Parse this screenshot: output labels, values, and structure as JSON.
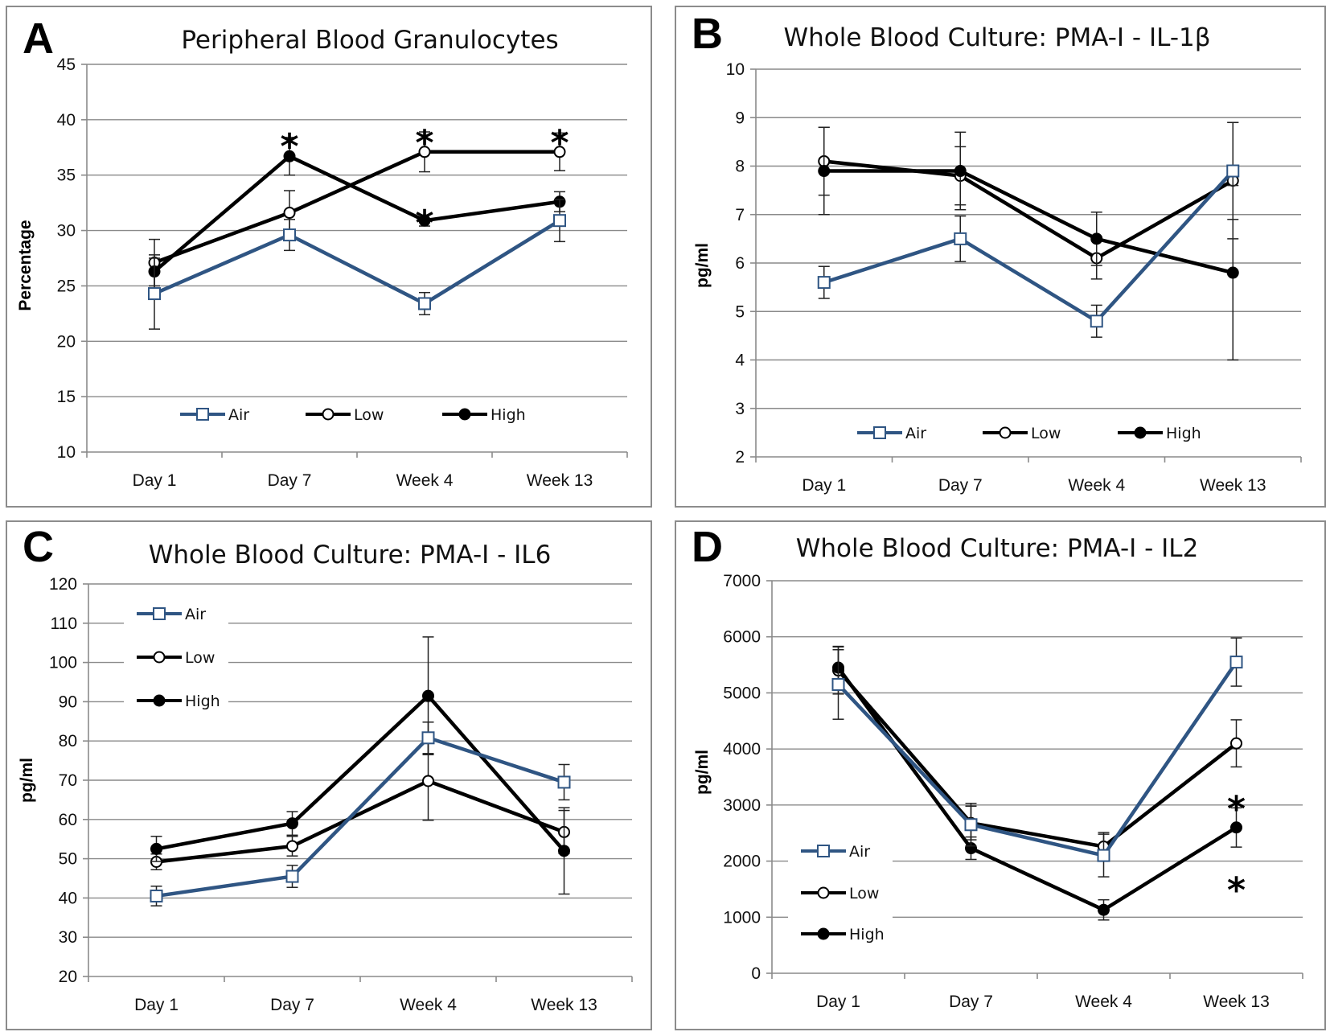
{
  "colors": {
    "air": "#2f5583",
    "low": "#000000",
    "high": "#000000"
  },
  "chart_data": [
    {
      "letter": "A",
      "type": "line",
      "title": "Peripheral Blood Granulocytes",
      "xlabel": "",
      "ylabel": "Percentage",
      "categories": [
        "Day 1",
        "Day 7",
        "Week 4",
        "Week 13"
      ],
      "ylim": [
        10,
        45
      ],
      "ytick_step": 5,
      "legend_position": "bottom-inside",
      "series": [
        {
          "name": "Air",
          "marker": "square",
          "values": [
            24.3,
            29.6,
            23.4,
            30.9
          ],
          "errors": [
            3.2,
            1.4,
            1.0,
            1.9
          ]
        },
        {
          "name": "Low",
          "marker": "open-circle",
          "values": [
            27.1,
            31.6,
            37.1,
            37.1
          ],
          "errors": [
            2.1,
            2.0,
            1.8,
            1.7
          ]
        },
        {
          "name": "High",
          "marker": "filled-circle",
          "values": [
            26.3,
            36.7,
            30.9,
            32.6
          ],
          "errors": [
            1.5,
            1.7,
            0.5,
            0.9
          ]
        }
      ],
      "significance": [
        {
          "category": "Day 7",
          "value": 38.7,
          "label": "*"
        },
        {
          "category": "Week 4",
          "value": 39.0,
          "label": "*"
        },
        {
          "category": "Week 4",
          "value": 31.8,
          "label": "*"
        },
        {
          "category": "Week 13",
          "value": 39.0,
          "label": "*"
        }
      ]
    },
    {
      "letter": "B",
      "type": "line",
      "title": "Whole Blood Culture:  PMA-I - IL-1β",
      "xlabel": "",
      "ylabel": "pg/ml",
      "categories": [
        "Day 1",
        "Day 7",
        "Week 4",
        "Week 13"
      ],
      "ylim": [
        2,
        10
      ],
      "ytick_step": 1,
      "legend_position": "bottom-inside",
      "series": [
        {
          "name": "Air",
          "marker": "square",
          "values": [
            5.6,
            6.5,
            4.8,
            7.9
          ],
          "errors": [
            0.33,
            0.47,
            0.33,
            1.0
          ]
        },
        {
          "name": "Low",
          "marker": "open-circle",
          "values": [
            8.1,
            7.8,
            6.1,
            7.7
          ],
          "errors": [
            0.7,
            0.6,
            0.43,
            1.2
          ]
        },
        {
          "name": "High",
          "marker": "filled-circle",
          "values": [
            7.9,
            7.9,
            6.5,
            5.8
          ],
          "errors": [
            0.9,
            0.8,
            0.55,
            1.8
          ]
        }
      ],
      "significance": []
    },
    {
      "letter": "C",
      "type": "line",
      "title": "Whole Blood Culture:  PMA-I - IL6",
      "xlabel": "",
      "ylabel": "pg/ml",
      "categories": [
        "Day 1",
        "Day 7",
        "Week 4",
        "Week 13"
      ],
      "ylim": [
        20,
        120
      ],
      "ytick_step": 10,
      "legend_position": "top-left",
      "series": [
        {
          "name": "Air",
          "marker": "square",
          "values": [
            40.5,
            45.5,
            80.8,
            69.5
          ],
          "errors": [
            2.5,
            2.8,
            4.0,
            4.5
          ]
        },
        {
          "name": "Low",
          "marker": "open-circle",
          "values": [
            49.2,
            53.2,
            69.8,
            56.8
          ],
          "errors": [
            2.0,
            2.5,
            10.0,
            5.5
          ]
        },
        {
          "name": "High",
          "marker": "filled-circle",
          "values": [
            52.5,
            59.0,
            91.5,
            52.0
          ],
          "errors": [
            3.2,
            3.0,
            15.0,
            11.0
          ]
        }
      ],
      "significance": []
    },
    {
      "letter": "D",
      "type": "line",
      "title": "Whole Blood Culture:  PMA-I - IL2",
      "xlabel": "",
      "ylabel": "pg/ml",
      "categories": [
        "Day 1",
        "Day 7",
        "Week 4",
        "Week 13"
      ],
      "ylim": [
        0,
        7000
      ],
      "ytick_step": 1000,
      "legend_position": "bottom-left",
      "series": [
        {
          "name": "Air",
          "marker": "square",
          "values": [
            5150,
            2650,
            2100,
            5550
          ],
          "errors": [
            620,
            380,
            380,
            430
          ]
        },
        {
          "name": "Low",
          "marker": "open-circle",
          "values": [
            5400,
            2680,
            2260,
            4100
          ],
          "errors": [
            420,
            300,
            250,
            420
          ]
        },
        {
          "name": "High",
          "marker": "filled-circle",
          "values": [
            5450,
            2230,
            1130,
            2600
          ],
          "errors": [
            380,
            200,
            180,
            350
          ]
        }
      ],
      "significance": [
        {
          "category": "Week 13",
          "value": 3150,
          "label": "*"
        },
        {
          "category": "Week 13",
          "value": 1700,
          "label": "*"
        }
      ]
    }
  ]
}
